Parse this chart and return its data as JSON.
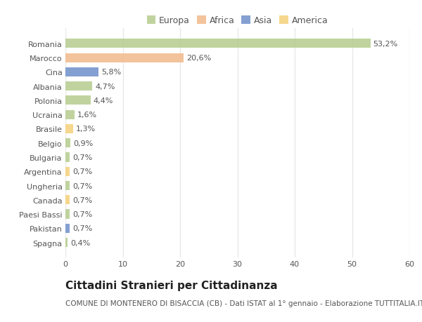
{
  "countries": [
    "Romania",
    "Marocco",
    "Cina",
    "Albania",
    "Polonia",
    "Ucraina",
    "Brasile",
    "Belgio",
    "Bulgaria",
    "Argentina",
    "Ungheria",
    "Canada",
    "Paesi Bassi",
    "Pakistan",
    "Spagna"
  ],
  "values": [
    53.2,
    20.6,
    5.8,
    4.7,
    4.4,
    1.6,
    1.3,
    0.9,
    0.7,
    0.7,
    0.7,
    0.7,
    0.7,
    0.7,
    0.4
  ],
  "labels": [
    "53,2%",
    "20,6%",
    "5,8%",
    "4,7%",
    "4,4%",
    "1,6%",
    "1,3%",
    "0,9%",
    "0,7%",
    "0,7%",
    "0,7%",
    "0,7%",
    "0,7%",
    "0,7%",
    "0,4%"
  ],
  "continents": [
    "Europa",
    "Africa",
    "Asia",
    "Europa",
    "Europa",
    "Europa",
    "America",
    "Europa",
    "Europa",
    "America",
    "Europa",
    "America",
    "Europa",
    "Asia",
    "Europa"
  ],
  "colors": {
    "Europa": "#b5cc8e",
    "Africa": "#f2b98a",
    "Asia": "#6e8fcb",
    "America": "#f5d07a"
  },
  "xlim": [
    0,
    60
  ],
  "xticks": [
    0,
    10,
    20,
    30,
    40,
    50,
    60
  ],
  "title": "Cittadini Stranieri per Cittadinanza",
  "subtitle": "COMUNE DI MONTENERO DI BISACCIA (CB) - Dati ISTAT al 1° gennaio - Elaborazione TUTTITALIA.IT",
  "background_color": "#ffffff",
  "plot_bg_color": "#ffffff",
  "bar_alpha": 0.85,
  "grid_color": "#e8e8e8",
  "title_fontsize": 11,
  "subtitle_fontsize": 7.5,
  "label_fontsize": 8,
  "tick_fontsize": 8,
  "legend_fontsize": 9
}
